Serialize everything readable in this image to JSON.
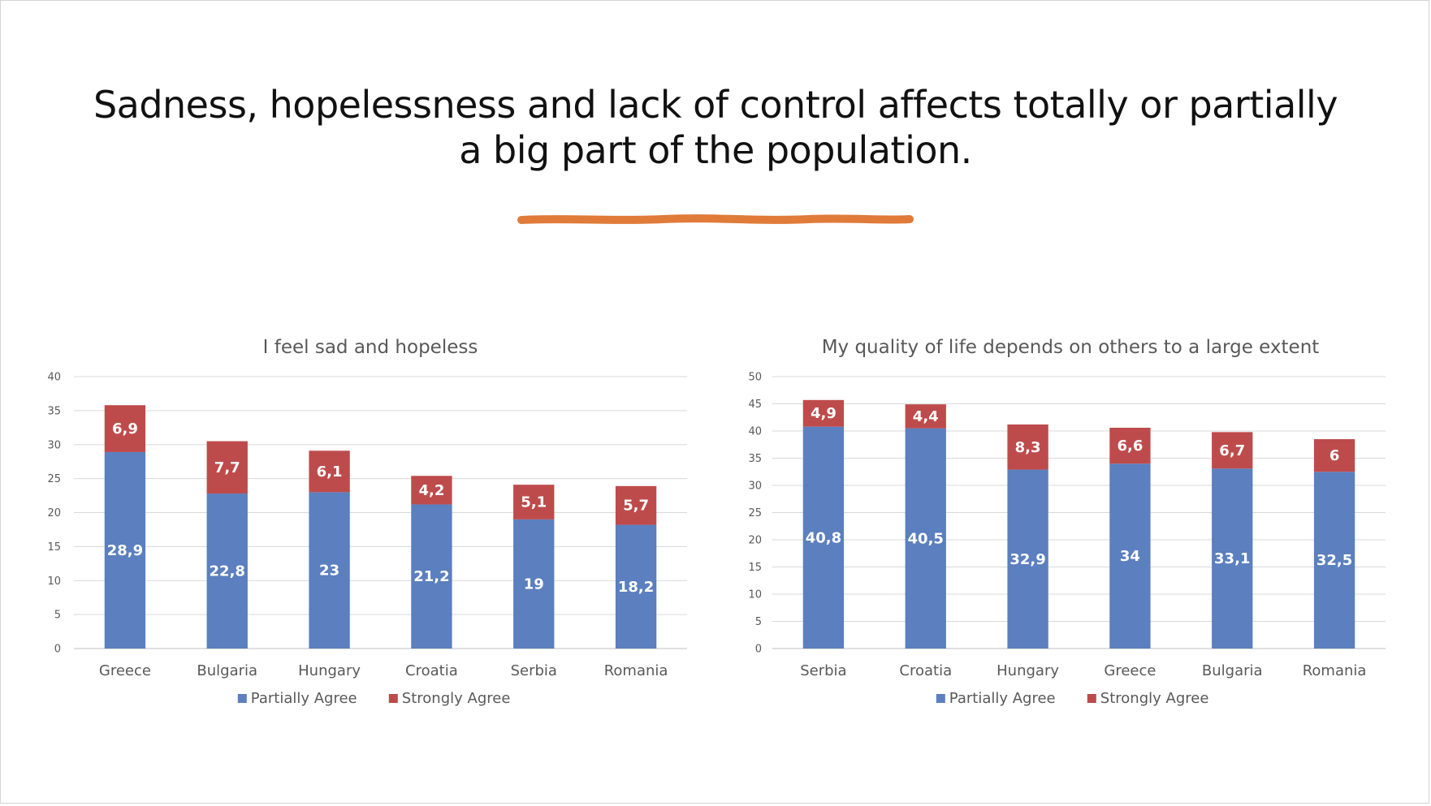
{
  "slide": {
    "title": "Sadness,  hopelessness and lack of control affects totally or partially a big part of the population.",
    "accent_color": "#E07B39"
  },
  "chart_data": [
    {
      "type": "bar",
      "stacked": true,
      "title": "I feel sad and hopeless",
      "categories": [
        "Greece",
        "Bulgaria",
        "Hungary",
        "Croatia",
        "Serbia",
        "Romania"
      ],
      "series": [
        {
          "name": "Partially Agree",
          "color": "#5B7FBF",
          "values": [
            28.9,
            22.8,
            23,
            21.2,
            19,
            18.2
          ],
          "labels": [
            "28,9",
            "22,8",
            "23",
            "21,2",
            "19",
            "18,2"
          ]
        },
        {
          "name": "Strongly Agree",
          "color": "#BE4B4B",
          "values": [
            6.9,
            7.7,
            6.1,
            4.2,
            5.1,
            5.7
          ],
          "labels": [
            "6,9",
            "7,7",
            "6,1",
            "4,2",
            "5,1",
            "5,7"
          ]
        }
      ],
      "ylim": [
        0,
        40
      ],
      "yticks": [
        0,
        5,
        10,
        15,
        20,
        25,
        30,
        35,
        40
      ],
      "grid": true,
      "legend": "bottom"
    },
    {
      "type": "bar",
      "stacked": true,
      "title": "My  quality of life depends on others to a large extent",
      "categories": [
        "Serbia",
        "Croatia",
        "Hungary",
        "Greece",
        "Bulgaria",
        "Romania"
      ],
      "series": [
        {
          "name": "Partially Agree",
          "color": "#5B7FBF",
          "values": [
            40.8,
            40.5,
            32.9,
            34,
            33.1,
            32.5
          ],
          "labels": [
            "40,8",
            "40,5",
            "32,9",
            "34",
            "33,1",
            "32,5"
          ]
        },
        {
          "name": "Strongly Agree",
          "color": "#BE4B4B",
          "values": [
            4.9,
            4.4,
            8.3,
            6.6,
            6.7,
            6
          ],
          "labels": [
            "4,9",
            "4,4",
            "8,3",
            "6,6",
            "6,7",
            "6"
          ]
        }
      ],
      "ylim": [
        0,
        50
      ],
      "yticks": [
        0,
        5,
        10,
        15,
        20,
        25,
        30,
        35,
        40,
        45,
        50
      ],
      "grid": true,
      "legend": "bottom"
    }
  ]
}
